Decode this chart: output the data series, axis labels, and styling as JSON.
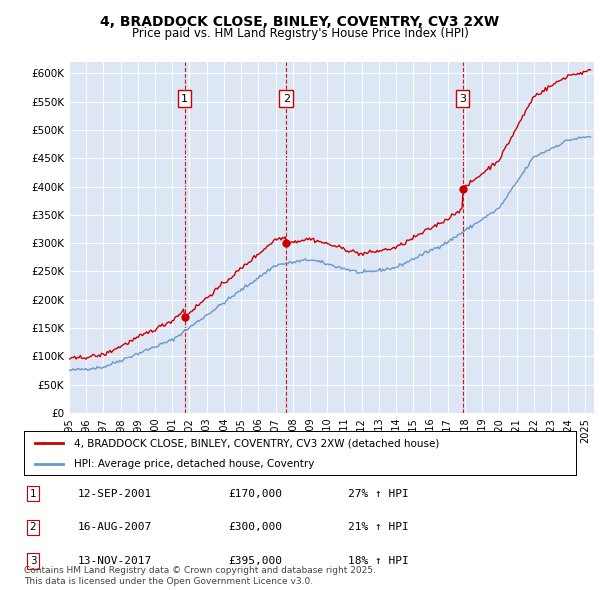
{
  "title": "4, BRADDOCK CLOSE, BINLEY, COVENTRY, CV3 2XW",
  "subtitle": "Price paid vs. HM Land Registry's House Price Index (HPI)",
  "background_color": "#dce6f5",
  "plot_bg_color": "#dce6f5",
  "ylim": [
    0,
    620000
  ],
  "yticks": [
    0,
    50000,
    100000,
    150000,
    200000,
    250000,
    300000,
    350000,
    400000,
    450000,
    500000,
    550000,
    600000
  ],
  "ytick_labels": [
    "£0",
    "£50K",
    "£100K",
    "£150K",
    "£200K",
    "£250K",
    "£300K",
    "£350K",
    "£400K",
    "£450K",
    "£500K",
    "£550K",
    "£600K"
  ],
  "hpi_color": "#6699cc",
  "price_color": "#cc0000",
  "sale_marker_color": "#cc0000",
  "dashed_line_color": "#cc0000",
  "purchases": [
    {
      "label": "1",
      "date_x": 2001.71,
      "price": 170000
    },
    {
      "label": "2",
      "date_x": 2007.62,
      "price": 300000
    },
    {
      "label": "3",
      "date_x": 2017.87,
      "price": 395000
    }
  ],
  "legend_line1": "4, BRADDOCK CLOSE, BINLEY, COVENTRY, CV3 2XW (detached house)",
  "legend_line2": "HPI: Average price, detached house, Coventry",
  "table_rows": [
    {
      "num": "1",
      "date": "12-SEP-2001",
      "price": "£170,000",
      "change": "27% ↑ HPI"
    },
    {
      "num": "2",
      "date": "16-AUG-2007",
      "price": "£300,000",
      "change": "21% ↑ HPI"
    },
    {
      "num": "3",
      "date": "13-NOV-2017",
      "price": "£395,000",
      "change": "18% ↑ HPI"
    }
  ],
  "footer": "Contains HM Land Registry data © Crown copyright and database right 2025.\nThis data is licensed under the Open Government Licence v3.0.",
  "xmin": 1995.0,
  "xmax": 2025.5
}
